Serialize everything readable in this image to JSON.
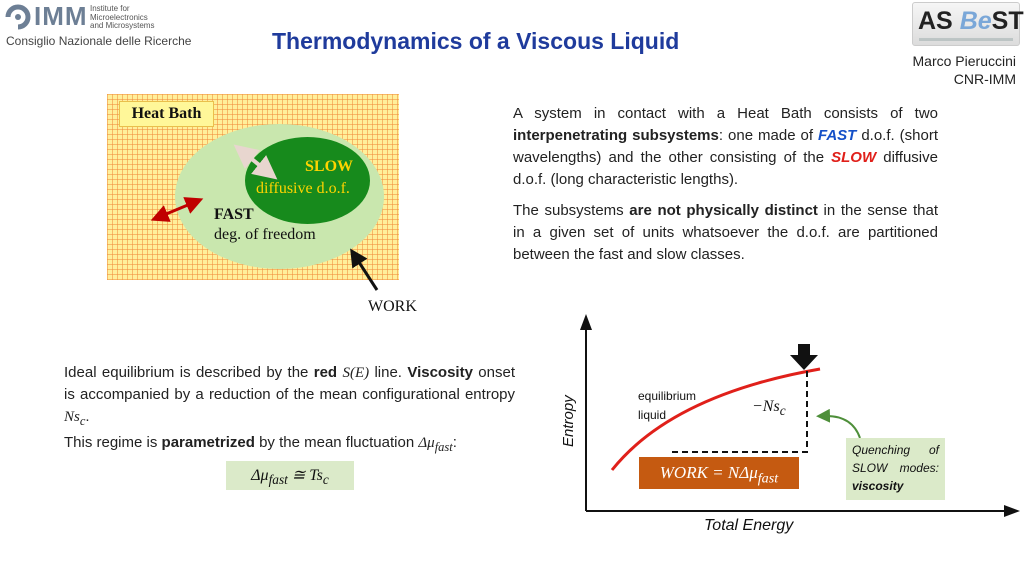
{
  "header": {
    "logo_left": {
      "acronym": "IMM",
      "institute_lines": [
        "Institute for",
        "Microelectronics",
        "and Microsystems"
      ],
      "council": "Consiglio Nazionale delle Ricerche"
    },
    "title": "Thermodynamics of a Viscous Liquid",
    "logo_right": {
      "part1": "AS ",
      "part2": "Be",
      "part3": "ST"
    },
    "author": "Marco Pieruccini",
    "affiliation": "CNR-IMM"
  },
  "diagram": {
    "heat_bath": "Heat Bath",
    "slow": "SLOW",
    "slow_sub": "diffusive d.o.f.",
    "fast": "FAST",
    "fast_sub": "deg. of freedom",
    "work": "WORK",
    "colors": {
      "bath": "#ffef9a",
      "fast_region": "#c9e7ae",
      "slow_region": "#178a1c",
      "arrow_red": "#c00000"
    }
  },
  "para1": {
    "t1": "A system in contact with a Heat Bath consists of two ",
    "b1": "interpenetrating subsystems",
    "t2": ": one made of ",
    "fast": "FAST",
    "t3": " d.o.f. (short wavelengths) and the other consisting of the ",
    "slow": "SLOW",
    "t4": " diffusive d.o.f. (long characteristic lengths)."
  },
  "para2": {
    "t1": "The subsystems ",
    "b1": "are not physically distinct",
    "t2": " in the sense that in a given set of units whatsoever the d.o.f. are partitioned between the fast and slow classes."
  },
  "para3": {
    "t1": "Ideal equilibrium is described by the ",
    "b1": "red",
    "m1": "S(E)",
    "t2": " line. ",
    "b2": "Viscosity",
    "t3": " onset is accompanied by a reduction of the mean configurational entropy ",
    "m2": "Ns",
    "m2sub": "c",
    "t4": ".",
    "t5": "This regime is ",
    "b3": "parametrized",
    "t6": " by the mean fluctuation ",
    "m3": "Δμ",
    "m3sub": "fast",
    "t7": ":"
  },
  "formula": {
    "lhs": "Δμ",
    "lhs_sub": "fast",
    "rel": " ≅ ",
    "rhs": "Ts",
    "rhs_sub": "c"
  },
  "plot": {
    "ylabel": "Entropy",
    "xlabel": "Total Energy",
    "curve_label_1": "equilibrium",
    "curve_label_2": "liquid",
    "nsc": "−Ns",
    "nsc_sub": "c",
    "work_box": "WORK = NΔμ",
    "work_box_sub": "fast",
    "quench_1": "Quenching of SLOW modes: ",
    "quench_2": "viscosity",
    "colors": {
      "curve": "#e0201a",
      "work_box": "#c55a11",
      "quench_box": "#dbeac9"
    }
  }
}
